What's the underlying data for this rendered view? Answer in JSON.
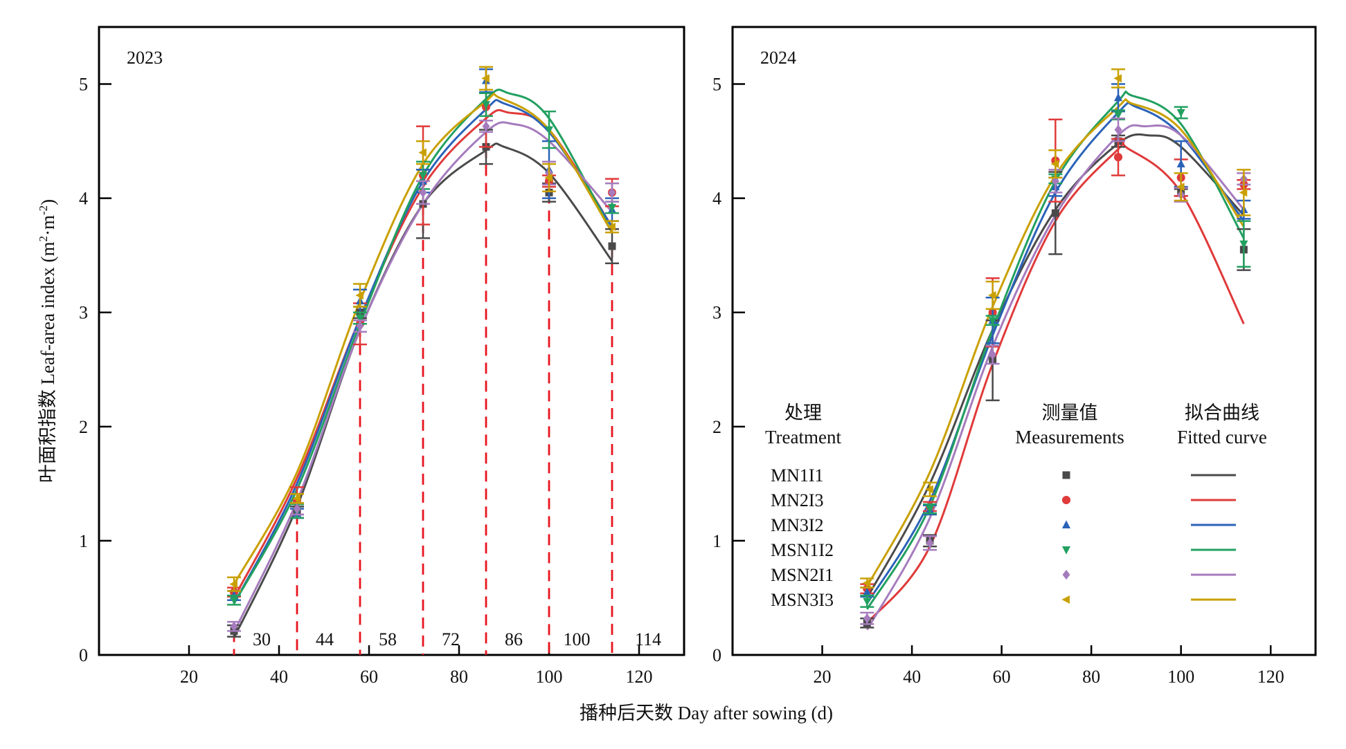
{
  "chart_data": {
    "type": "scatter",
    "title": "",
    "xlabel": "播种后天数 Day after sowing (d)",
    "ylabel": "叶面积指数 Leaf-area index (m²·m⁻²)",
    "ylabel_parts": {
      "main": "叶面积指数 Leaf-area index (m",
      "sup1": "2",
      "mid": "·m",
      "sup2": "-2",
      "end": ")"
    },
    "xlim": [
      0,
      130
    ],
    "ylim": [
      0,
      5.5
    ],
    "xticks": [
      20,
      40,
      60,
      80,
      100,
      120
    ],
    "yticks": [
      0,
      1,
      2,
      3,
      4,
      5
    ],
    "grid": false,
    "sampling_days": [
      30,
      44,
      58,
      72,
      86,
      100,
      114
    ],
    "sampling_day_labels": [
      "30",
      "44",
      "58",
      "72",
      "86",
      "100",
      "114"
    ],
    "legend": {
      "placement": "bottom-right of 2024 panel",
      "headers": {
        "treatment_cn": "处理",
        "treatment_en": "Treatment",
        "measure_cn": "测量值",
        "measure_en": "Measurements",
        "fit_cn": "拟合曲线",
        "fit_en": "Fitted curve"
      }
    },
    "series_styles": [
      {
        "name": "MN1I1",
        "color": "#4a4a4a",
        "marker": "square"
      },
      {
        "name": "MN2I3",
        "color": "#e03a3a",
        "marker": "circle"
      },
      {
        "name": "MN3I2",
        "color": "#2a62b8",
        "marker": "triangle-up"
      },
      {
        "name": "MSN1I2",
        "color": "#22a060",
        "marker": "triangle-down"
      },
      {
        "name": "MSN2I1",
        "color": "#a57bbd",
        "marker": "diamond"
      },
      {
        "name": "MSN3I3",
        "color": "#c9a000",
        "marker": "triangle-left"
      }
    ],
    "panels": [
      {
        "label": "2023",
        "show_day_markers": true,
        "marker_color": "#e8141e",
        "series": [
          {
            "name": "MN1I1",
            "measured": [
              [
                30,
                0.21,
                0.05
              ],
              [
                44,
                1.25,
                0.05
              ],
              [
                58,
                3.0,
                0.05
              ],
              [
                72,
                3.95,
                0.3
              ],
              [
                86,
                4.45,
                0.15
              ],
              [
                100,
                4.05,
                0.08
              ],
              [
                114,
                3.58,
                0.15
              ]
            ],
            "fitted": [
              [
                30,
                0.15
              ],
              [
                44,
                1.3
              ],
              [
                58,
                2.85
              ],
              [
                72,
                3.95
              ],
              [
                86,
                4.42
              ],
              [
                90,
                4.45
              ],
              [
                100,
                4.22
              ],
              [
                114,
                3.45
              ]
            ]
          },
          {
            "name": "MN2I3",
            "measured": [
              [
                30,
                0.55,
                0.04
              ],
              [
                44,
                1.35,
                0.12
              ],
              [
                58,
                2.9,
                0.18
              ],
              [
                72,
                4.2,
                0.43
              ],
              [
                86,
                4.8,
                0.35
              ],
              [
                100,
                4.15,
                0.05
              ],
              [
                114,
                4.05,
                0.12
              ]
            ],
            "fitted": [
              [
                30,
                0.5
              ],
              [
                44,
                1.55
              ],
              [
                58,
                2.95
              ],
              [
                72,
                4.1
              ],
              [
                86,
                4.7
              ],
              [
                91,
                4.75
              ],
              [
                100,
                4.6
              ],
              [
                114,
                3.75
              ]
            ]
          },
          {
            "name": "MN3I2",
            "measured": [
              [
                30,
                0.52,
                0.04
              ],
              [
                44,
                1.24,
                0.04
              ],
              [
                58,
                3.1,
                0.1
              ],
              [
                72,
                4.15,
                0.1
              ],
              [
                86,
                5.03,
                0.1
              ],
              [
                100,
                4.25,
                0.25
              ],
              [
                114,
                3.9,
                0.1
              ]
            ],
            "fitted": [
              [
                30,
                0.45
              ],
              [
                44,
                1.5
              ],
              [
                58,
                2.95
              ],
              [
                72,
                4.15
              ],
              [
                86,
                4.78
              ],
              [
                90,
                4.83
              ],
              [
                100,
                4.58
              ],
              [
                114,
                3.75
              ]
            ]
          },
          {
            "name": "MSN1I2",
            "measured": [
              [
                30,
                0.48,
                0.04
              ],
              [
                44,
                1.26,
                0.06
              ],
              [
                58,
                2.95,
                0.05
              ],
              [
                72,
                4.2,
                0.12
              ],
              [
                86,
                4.82,
                0.1
              ],
              [
                100,
                4.6,
                0.16
              ],
              [
                114,
                3.92,
                0.05
              ]
            ],
            "fitted": [
              [
                30,
                0.45
              ],
              [
                44,
                1.45
              ],
              [
                58,
                2.9
              ],
              [
                72,
                4.2
              ],
              [
                86,
                4.87
              ],
              [
                91,
                4.92
              ],
              [
                100,
                4.7
              ],
              [
                114,
                3.7
              ]
            ]
          },
          {
            "name": "MSN2I1",
            "measured": [
              [
                30,
                0.25,
                0.04
              ],
              [
                44,
                1.28,
                0.05
              ],
              [
                58,
                2.88,
                0.05
              ],
              [
                72,
                4.05,
                0.1
              ],
              [
                86,
                4.63,
                0.05
              ],
              [
                100,
                4.22,
                0.1
              ],
              [
                114,
                4.05,
                0.08
              ]
            ],
            "fitted": [
              [
                30,
                0.2
              ],
              [
                44,
                1.35
              ],
              [
                58,
                2.85
              ],
              [
                72,
                3.95
              ],
              [
                86,
                4.58
              ],
              [
                92,
                4.65
              ],
              [
                100,
                4.5
              ],
              [
                114,
                3.88
              ]
            ]
          },
          {
            "name": "MSN3I3",
            "measured": [
              [
                30,
                0.62,
                0.06
              ],
              [
                44,
                1.37,
                0.04
              ],
              [
                58,
                3.15,
                0.1
              ],
              [
                72,
                4.4,
                0.1
              ],
              [
                86,
                5.05,
                0.1
              ],
              [
                100,
                4.18,
                0.12
              ],
              [
                114,
                3.75,
                0.05
              ]
            ],
            "fitted": [
              [
                30,
                0.62
              ],
              [
                44,
                1.6
              ],
              [
                58,
                3.1
              ],
              [
                72,
                4.3
              ],
              [
                86,
                4.85
              ],
              [
                89,
                4.88
              ],
              [
                100,
                4.6
              ],
              [
                114,
                3.7
              ]
            ]
          }
        ]
      },
      {
        "label": "2024",
        "show_day_markers": false,
        "series": [
          {
            "name": "MN1I1",
            "measured": [
              [
                30,
                0.28,
                0.04
              ],
              [
                44,
                1.0,
                0.05
              ],
              [
                58,
                2.58,
                0.35
              ],
              [
                72,
                3.87,
                0.36
              ],
              [
                86,
                4.5,
                0.05
              ],
              [
                100,
                4.05,
                0.03
              ],
              [
                114,
                3.55,
                0.18
              ]
            ],
            "fitted": [
              [
                30,
                0.5
              ],
              [
                44,
                1.5
              ],
              [
                58,
                2.85
              ],
              [
                72,
                3.9
              ],
              [
                86,
                4.48
              ],
              [
                93,
                4.55
              ],
              [
                100,
                4.45
              ],
              [
                114,
                3.85
              ]
            ]
          },
          {
            "name": "MN2I3",
            "measured": [
              [
                30,
                0.58,
                0.04
              ],
              [
                44,
                1.3,
                0.04
              ],
              [
                58,
                3.0,
                0.3
              ],
              [
                72,
                4.33,
                0.36
              ],
              [
                86,
                4.36,
                0.16
              ],
              [
                100,
                4.18,
                0.16
              ],
              [
                114,
                4.12,
                0.04
              ]
            ],
            "fitted": [
              [
                30,
                0.28
              ],
              [
                44,
                0.95
              ],
              [
                58,
                2.55
              ],
              [
                72,
                3.8
              ],
              [
                86,
                4.43
              ],
              [
                88,
                4.44
              ],
              [
                100,
                4.05
              ],
              [
                114,
                2.9
              ]
            ]
          },
          {
            "name": "MN3I2",
            "measured": [
              [
                30,
                0.55,
                0.04
              ],
              [
                44,
                1.27,
                0.04
              ],
              [
                58,
                2.93,
                0.2
              ],
              [
                72,
                4.1,
                0.08
              ],
              [
                86,
                4.88,
                0.12
              ],
              [
                100,
                4.3,
                0.2
              ],
              [
                114,
                3.9,
                0.08
              ]
            ],
            "fitted": [
              [
                30,
                0.45
              ],
              [
                44,
                1.35
              ],
              [
                58,
                2.8
              ],
              [
                72,
                4.05
              ],
              [
                86,
                4.75
              ],
              [
                90,
                4.8
              ],
              [
                100,
                4.55
              ],
              [
                114,
                3.8
              ]
            ]
          },
          {
            "name": "MSN1I2",
            "measured": [
              [
                30,
                0.47,
                0.05
              ],
              [
                44,
                1.28,
                0.04
              ],
              [
                58,
                2.93,
                0.04
              ],
              [
                72,
                4.17,
                0.04
              ],
              [
                86,
                4.73,
                0.04
              ],
              [
                100,
                4.75,
                0.05
              ],
              [
                114,
                3.6,
                0.2
              ]
            ],
            "fitted": [
              [
                30,
                0.4
              ],
              [
                44,
                1.3
              ],
              [
                58,
                2.85
              ],
              [
                72,
                4.15
              ],
              [
                86,
                4.85
              ],
              [
                89,
                4.9
              ],
              [
                100,
                4.65
              ],
              [
                114,
                3.65
              ]
            ]
          },
          {
            "name": "MSN2I1",
            "measured": [
              [
                30,
                0.32,
                0.05
              ],
              [
                44,
                0.98,
                0.06
              ],
              [
                58,
                2.63,
                0.08
              ],
              [
                72,
                4.15,
                0.1
              ],
              [
                86,
                4.6,
                0.1
              ],
              [
                100,
                4.03,
                0.06
              ],
              [
                114,
                4.17,
                0.05
              ]
            ],
            "fitted": [
              [
                30,
                0.22
              ],
              [
                44,
                1.2
              ],
              [
                58,
                2.7
              ],
              [
                72,
                3.85
              ],
              [
                86,
                4.55
              ],
              [
                92,
                4.63
              ],
              [
                100,
                4.55
              ],
              [
                114,
                3.9
              ]
            ]
          },
          {
            "name": "MSN3I3",
            "measured": [
              [
                30,
                0.63,
                0.04
              ],
              [
                44,
                1.45,
                0.06
              ],
              [
                58,
                3.15,
                0.12
              ],
              [
                72,
                4.3,
                0.12
              ],
              [
                86,
                5.05,
                0.08
              ],
              [
                100,
                4.1,
                0.12
              ],
              [
                114,
                4.05,
                0.2
              ]
            ],
            "fitted": [
              [
                30,
                0.6
              ],
              [
                44,
                1.6
              ],
              [
                58,
                3.05
              ],
              [
                72,
                4.2
              ],
              [
                86,
                4.8
              ],
              [
                89,
                4.83
              ],
              [
                100,
                4.6
              ],
              [
                114,
                3.75
              ]
            ]
          }
        ]
      }
    ]
  }
}
